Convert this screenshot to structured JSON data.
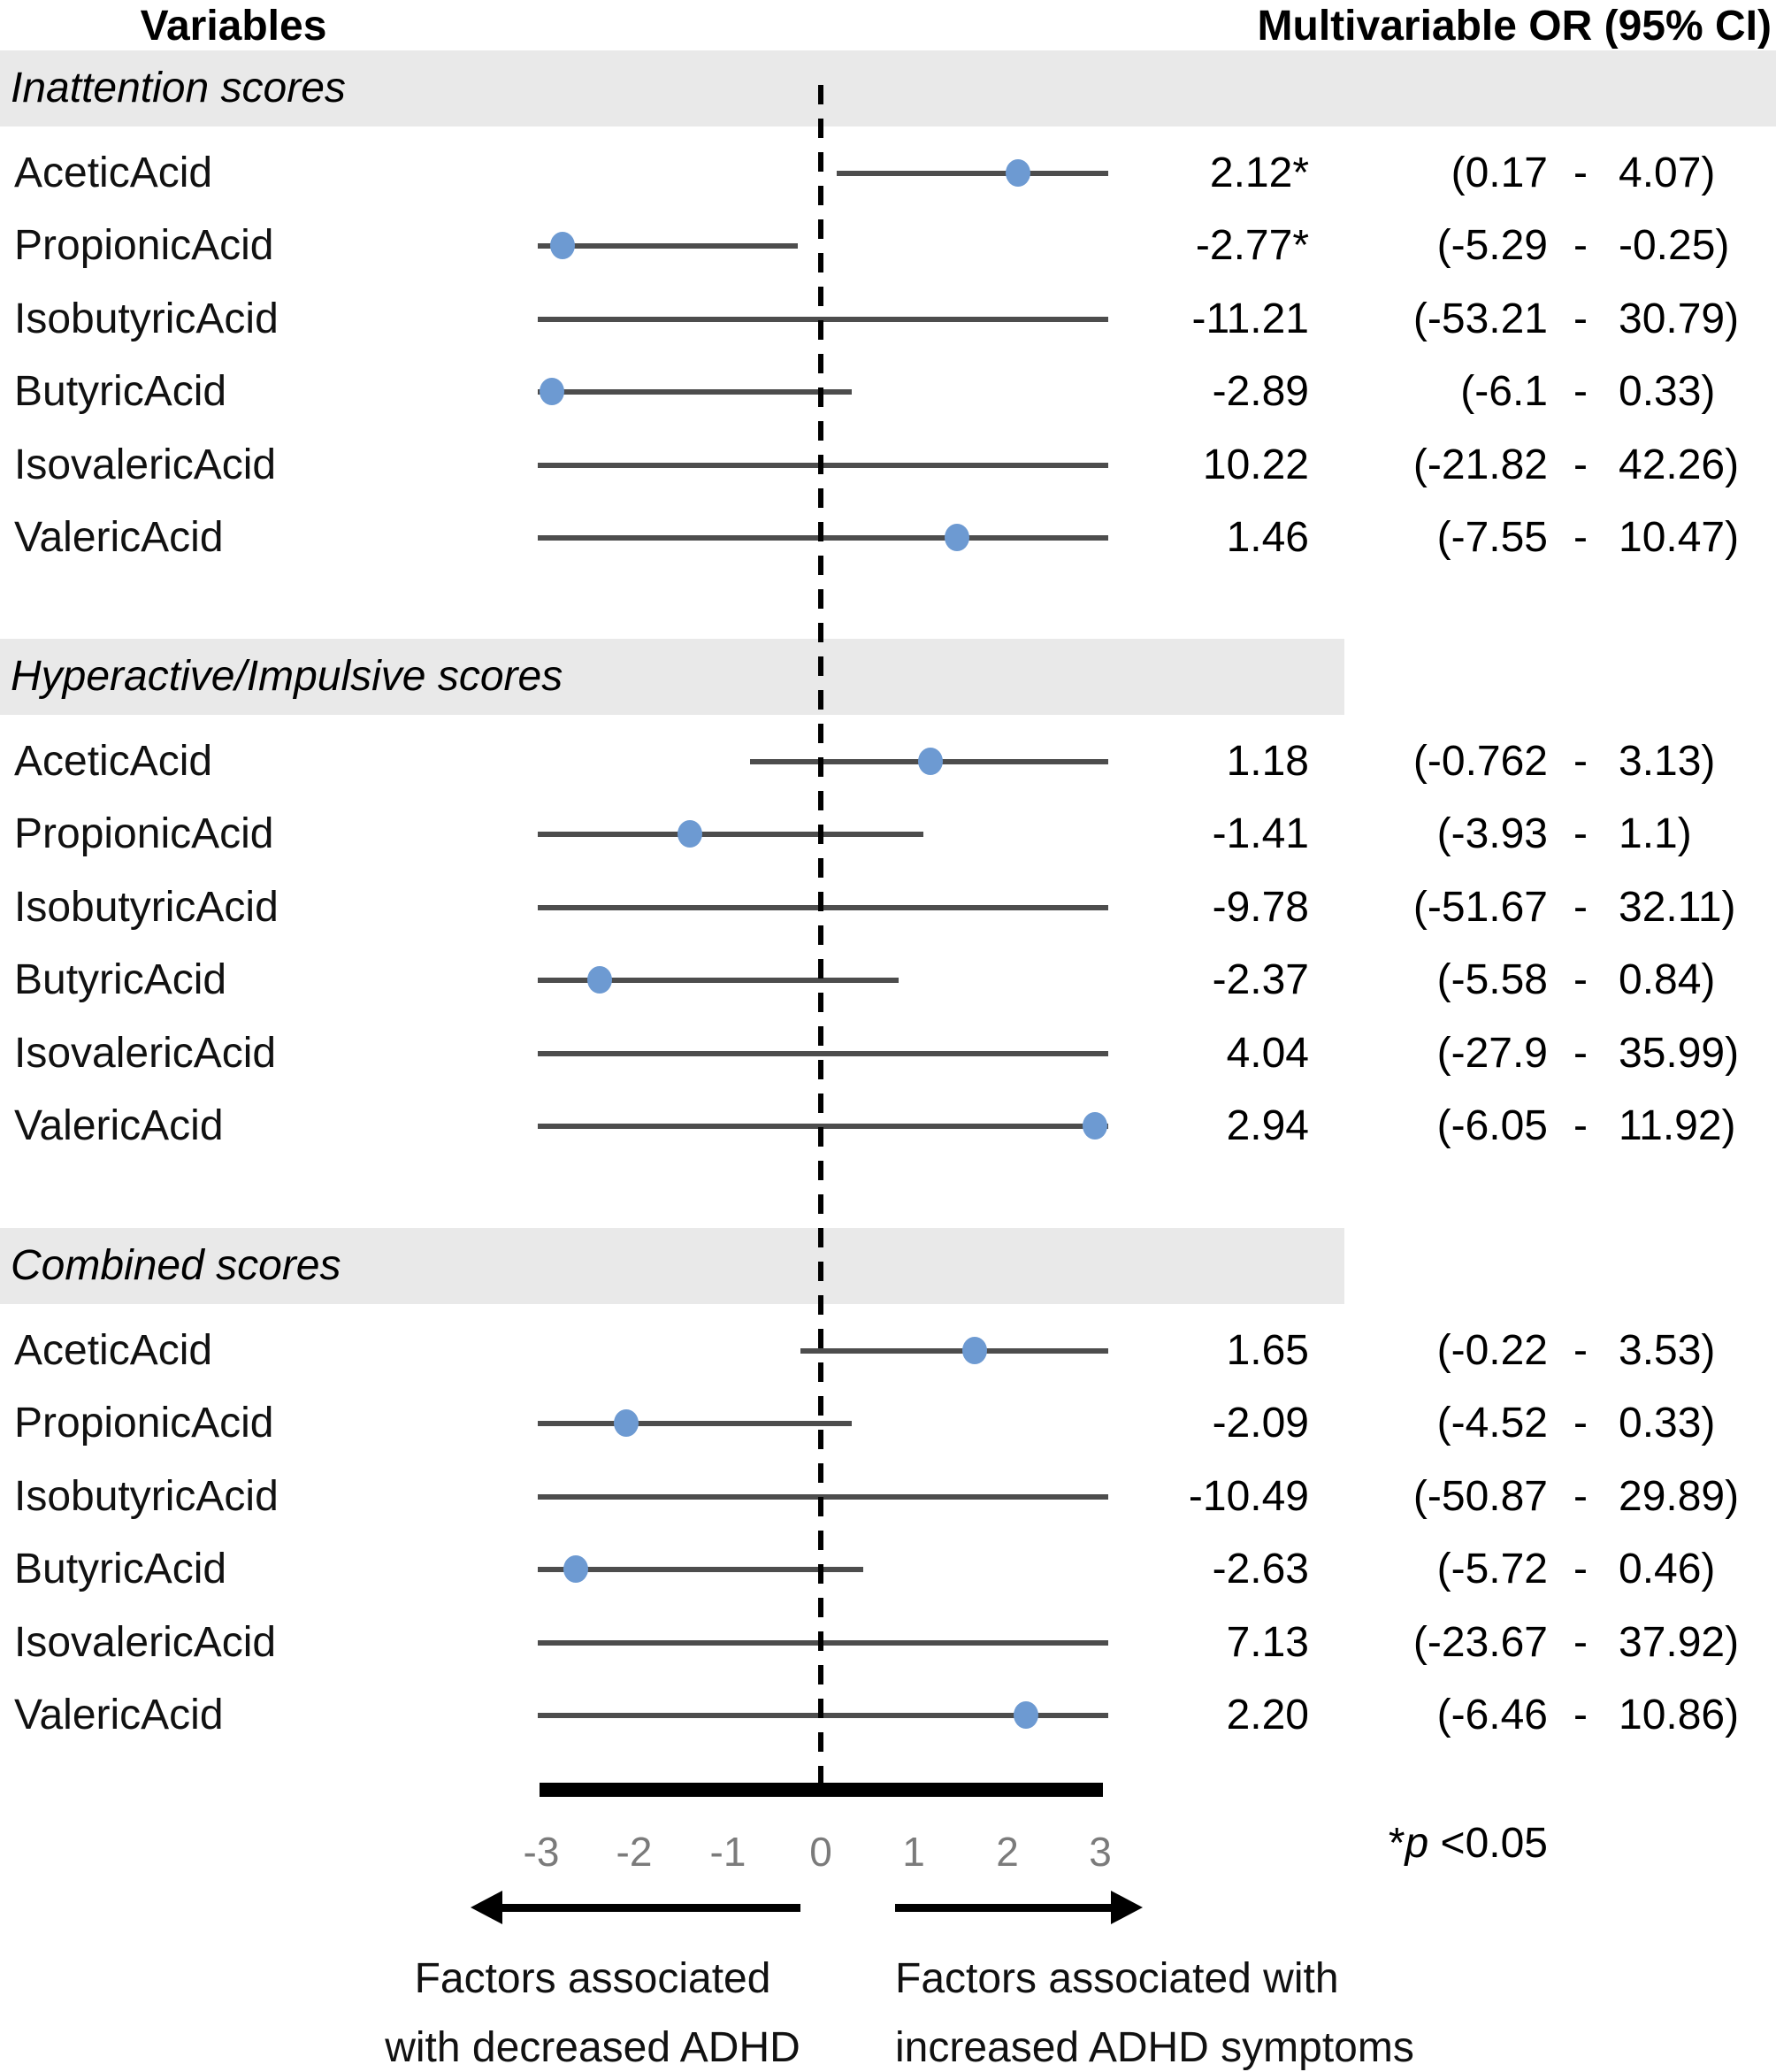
{
  "chart_data": {
    "type": "forest",
    "title_left": "Variables",
    "title_right": "Multivariable OR (95% CI)",
    "x_axis": {
      "ticks": [
        -3,
        -2,
        -1,
        0,
        1,
        2,
        3
      ],
      "range_shown": [
        -3.04,
        3.09
      ],
      "zero_line": 0,
      "grid": false
    },
    "sections": [
      {
        "name": "Inattention scores",
        "rows": [
          {
            "label": "AceticAcid",
            "estimate": 2.12,
            "ci": [
              0.17,
              4.07
            ],
            "or_text": "2.12*",
            "ci_low_text": "(0.17",
            "ci_high_text": "4.07)",
            "significant": true
          },
          {
            "label": "PropionicAcid",
            "estimate": -2.77,
            "ci": [
              -5.29,
              -0.25
            ],
            "or_text": "-2.77*",
            "ci_low_text": "(-5.29",
            "ci_high_text": "-0.25)",
            "significant": true
          },
          {
            "label": "IsobutyricAcid",
            "estimate": -11.21,
            "ci": [
              -53.21,
              30.79
            ],
            "or_text": "-11.21",
            "ci_low_text": "(-53.21",
            "ci_high_text": "30.79)",
            "significant": false
          },
          {
            "label": "ButyricAcid",
            "estimate": -2.89,
            "ci": [
              -6.1,
              0.33
            ],
            "or_text": "-2.89",
            "ci_low_text": "(-6.1",
            "ci_high_text": "0.33)",
            "significant": false
          },
          {
            "label": "IsovalericAcid",
            "estimate": 10.22,
            "ci": [
              -21.82,
              42.26
            ],
            "or_text": "10.22",
            "ci_low_text": "(-21.82",
            "ci_high_text": "42.26)",
            "significant": false
          },
          {
            "label": "ValericAcid",
            "estimate": 1.46,
            "ci": [
              -7.55,
              10.47
            ],
            "or_text": "1.46",
            "ci_low_text": "(-7.55",
            "ci_high_text": "10.47)",
            "significant": false
          }
        ]
      },
      {
        "name": "Hyperactive/Impulsive scores",
        "rows": [
          {
            "label": "AceticAcid",
            "estimate": 1.18,
            "ci": [
              -0.762,
              3.13
            ],
            "or_text": "1.18",
            "ci_low_text": "(-0.762",
            "ci_high_text": "3.13)",
            "significant": false
          },
          {
            "label": "PropionicAcid",
            "estimate": -1.41,
            "ci": [
              -3.93,
              1.1
            ],
            "or_text": "-1.41",
            "ci_low_text": "(-3.93",
            "ci_high_text": "1.1)",
            "significant": false
          },
          {
            "label": "IsobutyricAcid",
            "estimate": -9.78,
            "ci": [
              -51.67,
              32.11
            ],
            "or_text": "-9.78",
            "ci_low_text": "(-51.67",
            "ci_high_text": "32.11)",
            "significant": false
          },
          {
            "label": "ButyricAcid",
            "estimate": -2.37,
            "ci": [
              -5.58,
              0.84
            ],
            "or_text": "-2.37",
            "ci_low_text": "(-5.58",
            "ci_high_text": "0.84)",
            "significant": false
          },
          {
            "label": "IsovalericAcid",
            "estimate": 4.04,
            "ci": [
              -27.9,
              35.99
            ],
            "or_text": "4.04",
            "ci_low_text": "(-27.9",
            "ci_high_text": "35.99)",
            "significant": false
          },
          {
            "label": "ValericAcid",
            "estimate": 2.94,
            "ci": [
              -6.05,
              11.92
            ],
            "or_text": "2.94",
            "ci_low_text": "(-6.05",
            "ci_high_text": "11.92)",
            "significant": false
          }
        ]
      },
      {
        "name": "Combined scores",
        "rows": [
          {
            "label": "AceticAcid",
            "estimate": 1.65,
            "ci": [
              -0.22,
              3.53
            ],
            "or_text": "1.65",
            "ci_low_text": "(-0.22",
            "ci_high_text": "3.53)",
            "significant": false
          },
          {
            "label": "PropionicAcid",
            "estimate": -2.09,
            "ci": [
              -4.52,
              0.33
            ],
            "or_text": "-2.09",
            "ci_low_text": "(-4.52",
            "ci_high_text": "0.33)",
            "significant": false
          },
          {
            "label": "IsobutyricAcid",
            "estimate": -10.49,
            "ci": [
              -50.87,
              29.89
            ],
            "or_text": "-10.49",
            "ci_low_text": "(-50.87",
            "ci_high_text": "29.89)",
            "significant": false
          },
          {
            "label": "ButyricAcid",
            "estimate": -2.63,
            "ci": [
              -5.72,
              0.46
            ],
            "or_text": "-2.63",
            "ci_low_text": "(-5.72",
            "ci_high_text": "0.46)",
            "significant": false
          },
          {
            "label": "IsovalericAcid",
            "estimate": 7.13,
            "ci": [
              -23.67,
              37.92
            ],
            "or_text": "7.13",
            "ci_low_text": "(-23.67",
            "ci_high_text": "37.92)",
            "significant": false
          },
          {
            "label": "ValericAcid",
            "estimate": 2.2,
            "ci": [
              -6.46,
              10.86
            ],
            "or_text": "2.20",
            "ci_low_text": "(-6.46",
            "ci_high_text": "10.86)",
            "significant": false
          }
        ]
      }
    ],
    "footnote": "*p <0.05",
    "footnote_parts": {
      "star": "*",
      "p": "p",
      "rest": " <0.05"
    },
    "direction_labels": {
      "left": [
        "Factors associated",
        "with decreased ADHD"
      ],
      "right": [
        "Factors associated with",
        "increased ADHD symptoms"
      ]
    }
  },
  "colors": {
    "band": "#e9e9e9",
    "dot": "#6d9ad2",
    "ci_line": "#4d4d4d",
    "tick_label": "#7b7b7b",
    "text": "#000000"
  }
}
